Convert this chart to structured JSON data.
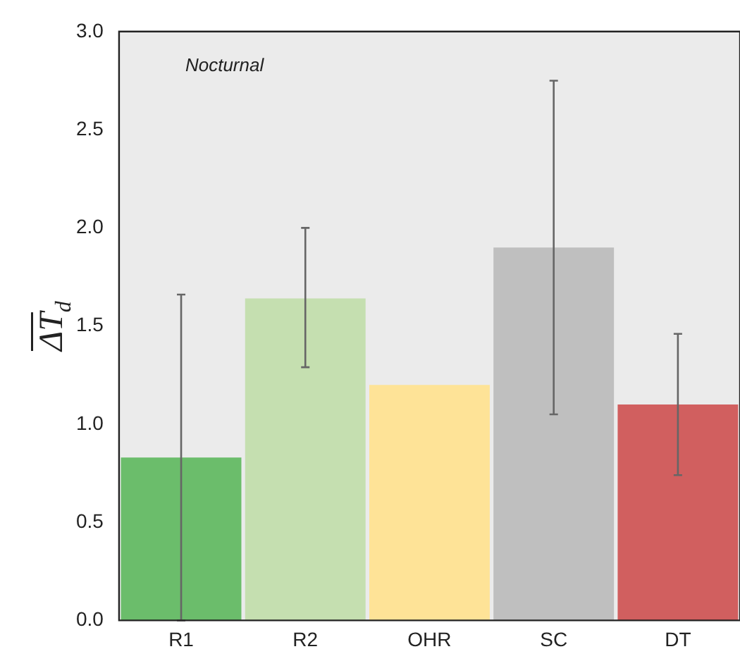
{
  "chart_data": {
    "type": "bar",
    "ylabel": "ΔT$_{d}$",
    "annotations": [
      "Nocturnal"
    ],
    "categories": [
      "R1",
      "R2",
      "OHR",
      "SC",
      "DT"
    ],
    "values": [
      0.83,
      1.64,
      1.2,
      1.9,
      1.1
    ],
    "colors": [
      "#6bbd6b",
      "#c5dfb0",
      "#fee397",
      "#bfbfbf",
      "#d15f5f"
    ],
    "errors": [
      [
        0,
        1.66
      ],
      [
        1.29,
        2.0
      ],
      null,
      [
        1.05,
        2.75
      ],
      [
        0.74,
        1.46
      ]
    ],
    "ylim": [
      0,
      3
    ],
    "yticks": [
      {
        "value": 0,
        "label": "0.0"
      },
      {
        "value": 0.5,
        "label": "0.5"
      },
      {
        "value": 1,
        "label": "1.0"
      },
      {
        "value": 1.5,
        "label": "1.5"
      },
      {
        "value": 2,
        "label": "2.0"
      },
      {
        "value": 2.5,
        "label": "2.5"
      },
      {
        "value": 3,
        "label": "3.0"
      }
    ],
    "grid": false,
    "legend": false
  }
}
